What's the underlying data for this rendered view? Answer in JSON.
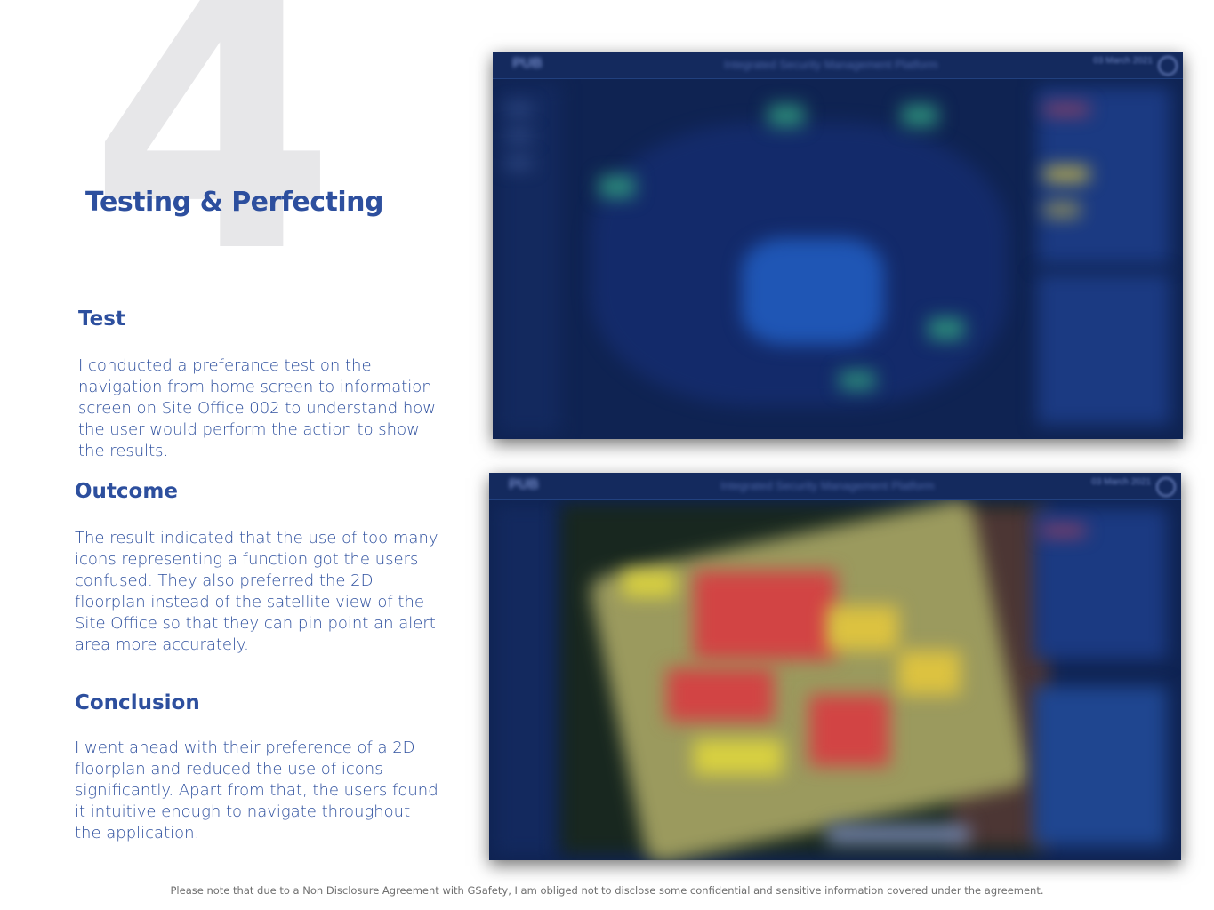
{
  "step": {
    "number": "4",
    "title": "Testing & Perfecting"
  },
  "test": {
    "heading": "Test",
    "body": "I conducted a preferance test on the navigation from home screen to information screen on Site Office 002 to understand how the user would perform the action to show the results."
  },
  "outcome": {
    "heading": "Outcome",
    "body": "The result indicated that the use of too many icons representing a function got the users confused. They also preferred the 2D floorplan instead of the satellite view of the Site Office so that they can pin point an alert area more accurately."
  },
  "conclusion": {
    "heading": "Conclusion",
    "body": "I went ahead with their preference of a 2D floorplan and reduced the use of icons significantly. Apart from that, the users found it intuitive enough to navigate throughout the application."
  },
  "screenshots": [
    {
      "logo": "PUB",
      "title": "Integrated Security Management Platform",
      "date": "03 March 2021"
    },
    {
      "logo": "PUB",
      "title": "Integrated Security Management Platform",
      "date": "03 March 2021"
    }
  ],
  "footer": {
    "note": "Please note that due to a Non Disclosure Agreement with GSafety,  I am obliged not to disclose some confidential and sensitive information covered under the agreement."
  },
  "colors": {
    "heading_blue": "#2d4f9e",
    "numeral_grey": "#e7e7e9",
    "screen_navy": "#0f2352"
  }
}
